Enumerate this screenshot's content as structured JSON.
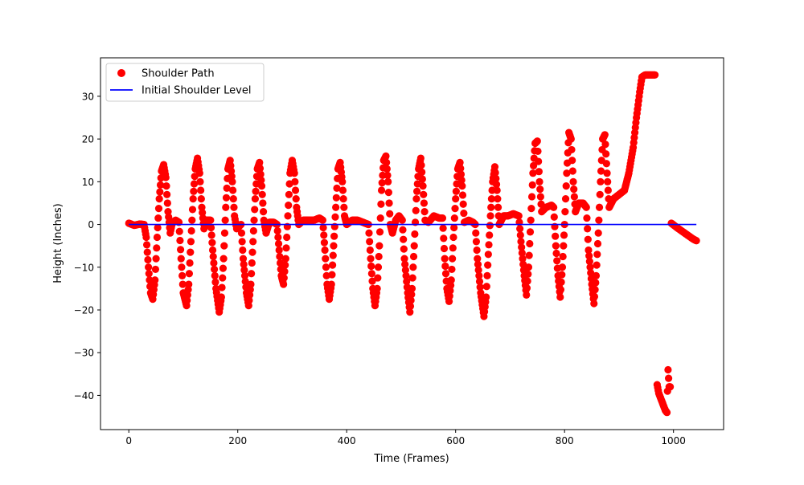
{
  "chart_data": {
    "type": "scatter",
    "xlabel": "Time (Frames)",
    "ylabel": "Height (Inches)",
    "xlim": [
      -52,
      1092
    ],
    "ylim": [
      -48,
      39
    ],
    "xticks": [
      0,
      200,
      400,
      600,
      800,
      1000
    ],
    "yticks": [
      -40,
      -30,
      -20,
      -10,
      0,
      10,
      20,
      30
    ],
    "xtick_labels": [
      "0",
      "200",
      "400",
      "600",
      "800",
      "1000"
    ],
    "ytick_labels": [
      "−40",
      "−30",
      "−20",
      "−10",
      "0",
      "10",
      "20",
      "30"
    ],
    "legend_position": "top-left",
    "series": [
      {
        "name": "Shoulder Path",
        "kind": "markers",
        "color": "#ff0000",
        "anchors": [
          [
            0,
            0.3
          ],
          [
            10,
            -0.2
          ],
          [
            20,
            0.1
          ],
          [
            28,
            0
          ],
          [
            32,
            -3
          ],
          [
            36,
            -10
          ],
          [
            40,
            -16
          ],
          [
            44,
            -17.5
          ],
          [
            48,
            -13
          ],
          [
            52,
            -3
          ],
          [
            56,
            6
          ],
          [
            60,
            12.5
          ],
          [
            64,
            14
          ],
          [
            68,
            11
          ],
          [
            72,
            3
          ],
          [
            76,
            -2
          ],
          [
            80,
            0.5
          ],
          [
            86,
            1
          ],
          [
            92,
            0.5
          ],
          [
            96,
            -8
          ],
          [
            100,
            -16
          ],
          [
            106,
            -19
          ],
          [
            110,
            -14
          ],
          [
            114,
            -4
          ],
          [
            118,
            6
          ],
          [
            122,
            13
          ],
          [
            126,
            15.5
          ],
          [
            130,
            12
          ],
          [
            134,
            4
          ],
          [
            138,
            -1
          ],
          [
            142,
            1
          ],
          [
            150,
            1
          ],
          [
            154,
            -6
          ],
          [
            160,
            -15
          ],
          [
            166,
            -20.5
          ],
          [
            170,
            -17
          ],
          [
            174,
            -8
          ],
          [
            178,
            4
          ],
          [
            182,
            13
          ],
          [
            186,
            15
          ],
          [
            190,
            10
          ],
          [
            194,
            2
          ],
          [
            198,
            -1
          ],
          [
            206,
            0
          ],
          [
            210,
            -8
          ],
          [
            216,
            -16
          ],
          [
            220,
            -19
          ],
          [
            224,
            -14
          ],
          [
            228,
            -4
          ],
          [
            232,
            6
          ],
          [
            236,
            13
          ],
          [
            240,
            14.5
          ],
          [
            244,
            9
          ],
          [
            248,
            1
          ],
          [
            252,
            -2
          ],
          [
            258,
            0.5
          ],
          [
            266,
            0.5
          ],
          [
            272,
            0
          ],
          [
            276,
            -6
          ],
          [
            280,
            -12
          ],
          [
            284,
            -14
          ],
          [
            288,
            -8
          ],
          [
            292,
            2
          ],
          [
            296,
            12
          ],
          [
            300,
            15
          ],
          [
            304,
            12
          ],
          [
            308,
            4
          ],
          [
            312,
            0
          ],
          [
            320,
            1
          ],
          [
            330,
            1
          ],
          [
            340,
            1
          ],
          [
            350,
            1.5
          ],
          [
            356,
            1
          ],
          [
            360,
            -6
          ],
          [
            364,
            -14
          ],
          [
            368,
            -17.5
          ],
          [
            372,
            -14
          ],
          [
            376,
            -5
          ],
          [
            380,
            4
          ],
          [
            384,
            13
          ],
          [
            388,
            14.5
          ],
          [
            392,
            10
          ],
          [
            396,
            2
          ],
          [
            400,
            0
          ],
          [
            410,
            1
          ],
          [
            420,
            1
          ],
          [
            430,
            0.5
          ],
          [
            440,
            0
          ],
          [
            444,
            -8
          ],
          [
            448,
            -15
          ],
          [
            452,
            -19
          ],
          [
            456,
            -15
          ],
          [
            460,
            -5
          ],
          [
            464,
            8
          ],
          [
            468,
            15
          ],
          [
            472,
            16
          ],
          [
            476,
            10
          ],
          [
            480,
            0
          ],
          [
            484,
            -2
          ],
          [
            490,
            1
          ],
          [
            496,
            2
          ],
          [
            502,
            1
          ],
          [
            506,
            -8
          ],
          [
            512,
            -16
          ],
          [
            516,
            -20.5
          ],
          [
            520,
            -15
          ],
          [
            524,
            -5
          ],
          [
            528,
            6
          ],
          [
            532,
            13
          ],
          [
            536,
            15.5
          ],
          [
            540,
            9
          ],
          [
            544,
            1
          ],
          [
            550,
            0.5
          ],
          [
            560,
            2
          ],
          [
            570,
            1.5
          ],
          [
            576,
            1.5
          ],
          [
            580,
            -8
          ],
          [
            584,
            -15
          ],
          [
            588,
            -18
          ],
          [
            592,
            -13
          ],
          [
            596,
            -3
          ],
          [
            600,
            6
          ],
          [
            604,
            13
          ],
          [
            608,
            14.5
          ],
          [
            612,
            9
          ],
          [
            616,
            0.5
          ],
          [
            624,
            1
          ],
          [
            632,
            0.5
          ],
          [
            636,
            0
          ],
          [
            640,
            -8
          ],
          [
            646,
            -16
          ],
          [
            652,
            -21.5
          ],
          [
            656,
            -17
          ],
          [
            660,
            -7
          ],
          [
            664,
            2
          ],
          [
            668,
            10
          ],
          [
            672,
            13.5
          ],
          [
            676,
            8
          ],
          [
            680,
            0
          ],
          [
            688,
            2
          ],
          [
            696,
            2
          ],
          [
            706,
            2.5
          ],
          [
            716,
            2
          ],
          [
            720,
            -4
          ],
          [
            726,
            -12
          ],
          [
            730,
            -16.5
          ],
          [
            734,
            -10
          ],
          [
            738,
            1
          ],
          [
            742,
            12
          ],
          [
            746,
            19
          ],
          [
            750,
            19.5
          ],
          [
            754,
            10
          ],
          [
            758,
            3
          ],
          [
            766,
            4
          ],
          [
            776,
            4.5
          ],
          [
            780,
            4
          ],
          [
            784,
            -5
          ],
          [
            788,
            -12
          ],
          [
            792,
            -17
          ],
          [
            796,
            -10
          ],
          [
            800,
            0
          ],
          [
            804,
            12
          ],
          [
            808,
            21.5
          ],
          [
            812,
            20
          ],
          [
            816,
            10
          ],
          [
            820,
            3
          ],
          [
            826,
            5
          ],
          [
            834,
            5
          ],
          [
            840,
            4
          ],
          [
            844,
            -6
          ],
          [
            850,
            -14
          ],
          [
            854,
            -18.5
          ],
          [
            858,
            -12
          ],
          [
            862,
            -2
          ],
          [
            866,
            10
          ],
          [
            870,
            20
          ],
          [
            874,
            21
          ],
          [
            878,
            12
          ],
          [
            882,
            4
          ],
          [
            890,
            6
          ],
          [
            900,
            7
          ],
          [
            910,
            8
          ],
          [
            918,
            12
          ],
          [
            926,
            18
          ],
          [
            932,
            25
          ],
          [
            938,
            31
          ],
          [
            942,
            34.5
          ],
          [
            948,
            35
          ],
          [
            958,
            35
          ],
          [
            966,
            35
          ]
        ],
        "outliers": [
          [
            970,
            -37.5
          ],
          [
            973,
            -39.5
          ],
          [
            976,
            -40.5
          ],
          [
            979,
            -41.5
          ],
          [
            982,
            -42.5
          ],
          [
            985,
            -43.5
          ],
          [
            988,
            -44
          ],
          [
            990,
            -34
          ],
          [
            992,
            -38
          ],
          [
            994,
            -38
          ]
        ],
        "tail": [
          [
            996,
            0.3
          ],
          [
            1006,
            -0.7
          ],
          [
            1016,
            -1.6
          ],
          [
            1026,
            -2.5
          ],
          [
            1036,
            -3.4
          ],
          [
            1042,
            -3.8
          ]
        ]
      },
      {
        "name": "Initial Shoulder Level",
        "kind": "line",
        "color": "#0000ff",
        "x": [
          0,
          1042
        ],
        "y": [
          0,
          0
        ]
      }
    ]
  }
}
